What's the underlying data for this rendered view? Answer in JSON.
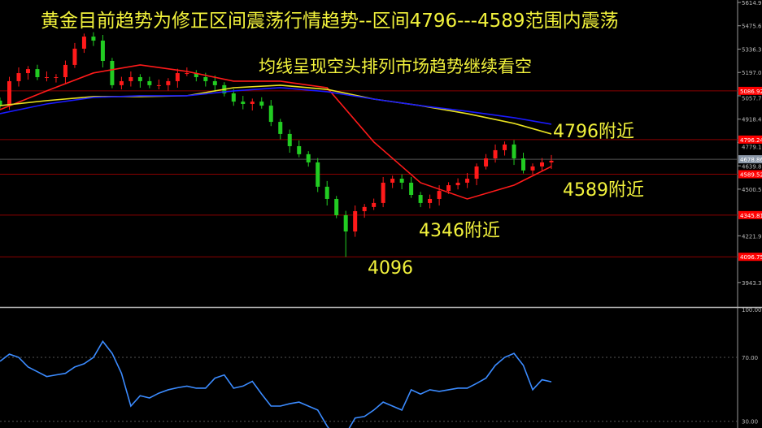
{
  "annotations": {
    "title": "黄金目前趋势为修正区间震荡行情趋势--区间4796---4589范围内震荡",
    "subtitle": "均线呈现空头排列市场趋势继续看空",
    "label_4796": "4796附近",
    "label_4589": "4589附近",
    "label_4346": "4346附近",
    "label_4096": "4096"
  },
  "chart_data": [
    {
      "type": "candlestick",
      "ylim": [
        3900,
        5630
      ],
      "y_ticks": [
        "5614.90",
        "5475.60",
        "5336.30",
        "5197.00",
        "5057.70",
        "4918.40",
        "4779.10",
        "4639.80",
        "4500.50",
        "4221.90",
        "3943.30"
      ],
      "y_tick_values": [
        5614.9,
        5475.6,
        5336.3,
        5197.0,
        5057.7,
        4918.4,
        4779.1,
        4639.8,
        4500.5,
        4221.9,
        3943.3
      ],
      "price_levels": [
        {
          "value": 5086.92,
          "label": "5086.92",
          "color": "#ff0000"
        },
        {
          "value": 4796.24,
          "label": "4796.24",
          "color": "#ff0000"
        },
        {
          "value": 4589.52,
          "label": "4589.52",
          "color": "#ff0000"
        },
        {
          "value": 4345.81,
          "label": "4345.81",
          "color": "#ff0000"
        },
        {
          "value": 4096.75,
          "label": "4096.75",
          "color": "#ff0000"
        }
      ],
      "current_price": {
        "value": 4678.86,
        "label": "4678.86",
        "color": "#8a97a8"
      },
      "close": [
        4999,
        5145,
        5193,
        5217,
        5169,
        5169,
        5169,
        5242,
        5339,
        5411,
        5387,
        5266,
        5121,
        5145,
        5169,
        5145,
        5121,
        5121,
        5145,
        5193,
        5193,
        5169,
        5145,
        5121,
        5072,
        5023,
        5009,
        5023,
        4999,
        4902,
        4830,
        4757,
        4709,
        4660,
        4515,
        4442,
        4345,
        4248,
        4369,
        4394,
        4418,
        4539,
        4563,
        4539,
        4466,
        4418,
        4442,
        4490,
        4524,
        4539,
        4563,
        4636,
        4684,
        4733,
        4767,
        4684,
        4612,
        4636,
        4660,
        4670
      ],
      "low_point": 4096,
      "up_color": "#ff1a1a",
      "down_color": "#22cc22",
      "moving_averages": {
        "sample_every": 5,
        "series": [
          {
            "color": "#ff1a1a",
            "values": [
              4975,
              5087,
              5194,
              5242,
              5203,
              5145,
              5145,
              5106,
              4782,
              4539,
              4442,
              4524,
              4636
            ]
          },
          {
            "color": "#e8e020",
            "values": [
              4999,
              5029,
              5053,
              5053,
              5058,
              5106,
              5121,
              5096,
              5038,
              4999,
              4951,
              4893,
              4830
            ]
          },
          {
            "color": "#1a1aff",
            "values": [
              4951,
              5009,
              5048,
              5058,
              5058,
              5087,
              5106,
              5082,
              5038,
              4999,
              4965,
              4927,
              4888
            ]
          }
        ]
      }
    },
    {
      "type": "line",
      "ylim": [
        25,
        100
      ],
      "y_ticks": [
        "100.00",
        "70.00",
        "30.00"
      ],
      "y_tick_values": [
        100,
        70,
        30
      ],
      "series": [
        {
          "color": "#3b8bff",
          "values": [
            67.5,
            72,
            70,
            64,
            61,
            58,
            59,
            60,
            64,
            66,
            70,
            80,
            72.5,
            60,
            39.5,
            46,
            44.6,
            47.6,
            49.7,
            51,
            52,
            50.7,
            50.7,
            57,
            59,
            50.7,
            52,
            55,
            47,
            39.5,
            39.5,
            41,
            42,
            39.5,
            37,
            27,
            19,
            22,
            32,
            33,
            37,
            42,
            39.5,
            37,
            49.7,
            47,
            49.7,
            48.7,
            49.7,
            50.7,
            50.7,
            53.7,
            57,
            65,
            70,
            72.5,
            65,
            49.7,
            56,
            54.7
          ]
        }
      ]
    }
  ]
}
